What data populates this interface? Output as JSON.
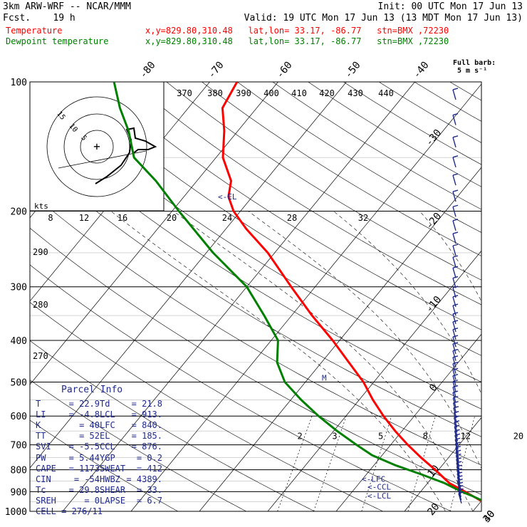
{
  "header": {
    "model": "3km ARW-WRF -- NCAR/MMM",
    "forecast": "Fcst.    19 h",
    "init": "Init: 00 UTC Mon 17 Jun 13",
    "valid": "Valid: 19 UTC Mon 17 Jun 13 (13 MDT Mon 17 Jun 13)",
    "temp_label": "Temperature",
    "temp_loc": "x,y=829.80,310.48   lat,lon= 33.17, -86.77   stn=BMX ,72230",
    "dew_label": "Dewpoint temperature",
    "dew_loc": "x,y=829.80,310.48   lat,lon= 33.17, -86.77   stn=BMX ,72230",
    "barb_legend_title": "Full barb:",
    "barb_legend_value": "5 m s⁻¹"
  },
  "colors": {
    "temperature": "#ff0000",
    "dewpoint": "#008000",
    "annotation": "#1f2a8a",
    "hodograph_line": "#000000"
  },
  "chart_data": {
    "type": "line",
    "chart_kind": "skew-T log-p sounding",
    "pressure_axis": {
      "labels": [
        "100",
        "200",
        "300",
        "400",
        "500",
        "600",
        "700",
        "800",
        "900",
        "1000"
      ],
      "scale": "log"
    },
    "isotherm_labels": [
      "-80",
      "-70",
      "-60",
      "-50",
      "-40",
      "-30",
      "-20",
      "-10",
      "0",
      "10",
      "20",
      "30",
      "40"
    ],
    "theta_labels": [
      "370",
      "380",
      "390",
      "400",
      "410",
      "420",
      "430",
      "440"
    ],
    "theta_side_labels": [
      "290",
      "280",
      "270"
    ],
    "mixing_ratio_labels": [
      "2",
      "3",
      "5",
      "8",
      "12",
      "20"
    ],
    "hodograph": {
      "ring_labels": [
        "15",
        "10",
        "5"
      ],
      "speed_label": "kts",
      "speed_ticks": [
        "8",
        "12",
        "16",
        "20",
        "24",
        "28",
        "32"
      ]
    },
    "series": [
      {
        "name": "Temperature",
        "color": "#ff0000",
        "points": [
          {
            "p": 990,
            "t": 22.5
          },
          {
            "p": 960,
            "t": 21.0
          },
          {
            "p": 930,
            "t": 18.8
          },
          {
            "p": 900,
            "t": 16.5
          },
          {
            "p": 860,
            "t": 13.2
          },
          {
            "p": 800,
            "t": 9.5
          },
          {
            "p": 750,
            "t": 6.0
          },
          {
            "p": 700,
            "t": 2.5
          },
          {
            "p": 650,
            "t": -1.0
          },
          {
            "p": 600,
            "t": -4.5
          },
          {
            "p": 550,
            "t": -8.0
          },
          {
            "p": 500,
            "t": -11.5
          },
          {
            "p": 450,
            "t": -16.0
          },
          {
            "p": 400,
            "t": -21.0
          },
          {
            "p": 350,
            "t": -27.0
          },
          {
            "p": 300,
            "t": -33.5
          },
          {
            "p": 250,
            "t": -41.0
          },
          {
            "p": 220,
            "t": -47.0
          },
          {
            "p": 200,
            "t": -51.0
          },
          {
            "p": 185,
            "t": -53.5
          },
          {
            "p": 170,
            "t": -55.0
          },
          {
            "p": 150,
            "t": -59.0
          },
          {
            "p": 130,
            "t": -62.0
          },
          {
            "p": 115,
            "t": -65.0
          },
          {
            "p": 100,
            "t": -66.0
          }
        ]
      },
      {
        "name": "Dewpoint temperature",
        "color": "#008000",
        "points": [
          {
            "p": 975,
            "t": 20.8
          },
          {
            "p": 950,
            "t": 20.6
          },
          {
            "p": 920,
            "t": 18.0
          },
          {
            "p": 900,
            "t": 16.0
          },
          {
            "p": 860,
            "t": 12.5
          },
          {
            "p": 820,
            "t": 8.0
          },
          {
            "p": 780,
            "t": 3.0
          },
          {
            "p": 740,
            "t": -1.5
          },
          {
            "p": 700,
            "t": -5.0
          },
          {
            "p": 650,
            "t": -9.5
          },
          {
            "p": 600,
            "t": -14.0
          },
          {
            "p": 550,
            "t": -18.5
          },
          {
            "p": 500,
            "t": -23.0
          },
          {
            "p": 450,
            "t": -26.5
          },
          {
            "p": 400,
            "t": -29.0
          },
          {
            "p": 350,
            "t": -34.0
          },
          {
            "p": 300,
            "t": -40.0
          },
          {
            "p": 250,
            "t": -49.0
          },
          {
            "p": 200,
            "t": -59.0
          },
          {
            "p": 170,
            "t": -66.0
          },
          {
            "p": 150,
            "t": -72.0
          },
          {
            "p": 130,
            "t": -76.0
          },
          {
            "p": 115,
            "t": -80.0
          },
          {
            "p": 100,
            "t": -84.0
          }
        ]
      }
    ],
    "annotations": [
      {
        "label": "<-EL",
        "p": 185
      },
      {
        "label": "<-LFC",
        "p": 840
      },
      {
        "label": "<-CCL",
        "p": 876
      },
      {
        "label": "<-LCL",
        "p": 913
      },
      {
        "label": "M",
        "p": 500
      }
    ],
    "wind_barbs": "Full barb: 5 m s-1"
  },
  "parcel_info": {
    "title": "Parcel Info",
    "rows": [
      {
        "k1": "T",
        "v1": "22.9",
        "k2": "Td",
        "v2": "21.8"
      },
      {
        "k1": "LI",
        "v1": "-4.8",
        "k2": "LCL",
        "v2": "913."
      },
      {
        "k1": "K",
        "v1": "40",
        "k2": "LFC",
        "v2": "840."
      },
      {
        "k1": "TT",
        "v1": "52",
        "k2": "EL",
        "v2": "185."
      },
      {
        "k1": "SVI",
        "v1": "-5.5",
        "k2": "CCL",
        "v2": "876."
      },
      {
        "k1": "PW",
        "v1": "5.44",
        "k2": "YGP",
        "v2": "0.2"
      },
      {
        "k1": "CAPE",
        "v1": "1173",
        "k2": "SWEAT",
        "v2": "412"
      },
      {
        "k1": "CIN",
        "v1": "-54",
        "k2": "HWBZ",
        "v2": "4389."
      },
      {
        "k1": "Tc",
        "v1": "29.8",
        "k2": "SHEAR",
        "v2": "33."
      },
      {
        "k1": "SREH",
        "v1": "0",
        "k2": "LAPSE",
        "v2": "6.7"
      }
    ],
    "cell": "CELL = 276/11"
  }
}
